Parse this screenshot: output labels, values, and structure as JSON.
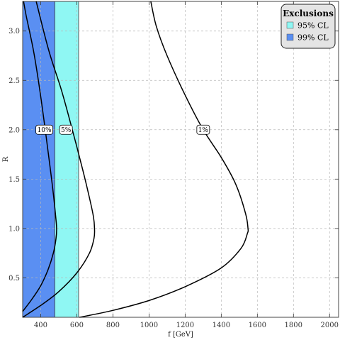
{
  "chart_data": {
    "type": "line",
    "xlabel": "f [GeV]",
    "ylabel": "R",
    "xlim": [
      300,
      2050
    ],
    "ylim": [
      0.1,
      3.3
    ],
    "x_ticks": [
      400,
      600,
      800,
      1000,
      1200,
      1400,
      1600,
      1800,
      2000
    ],
    "y_ticks": [
      0.5,
      1.0,
      1.5,
      2.0,
      2.5,
      3.0
    ],
    "y_tick_labels": [
      "0.5",
      "1.0",
      "1.5",
      "2.0",
      "2.5",
      "3.0"
    ],
    "grid": true,
    "exclusion_regions": [
      {
        "name": "99% CL",
        "x_range": [
          300,
          478
        ],
        "color": "#5a8ff2"
      },
      {
        "name": "95% CL",
        "x_range": [
          478,
          610
        ],
        "color": "#8ff7f3"
      }
    ],
    "contours": [
      {
        "label": "10%",
        "label_at": [
          420,
          2.0
        ],
        "points": [
          [
            300,
            0.16
          ],
          [
            350,
            0.28
          ],
          [
            400,
            0.42
          ],
          [
            440,
            0.58
          ],
          [
            470,
            0.75
          ],
          [
            485,
            0.9
          ],
          [
            488,
            1.0
          ],
          [
            484,
            1.1
          ],
          [
            470,
            1.35
          ],
          [
            450,
            1.65
          ],
          [
            425,
            2.0
          ],
          [
            395,
            2.4
          ],
          [
            360,
            2.8
          ],
          [
            320,
            3.15
          ],
          [
            305,
            3.3
          ]
        ]
      },
      {
        "label": "5%",
        "label_at": [
          540,
          2.0
        ],
        "points": [
          [
            300,
            0.1
          ],
          [
            400,
            0.22
          ],
          [
            500,
            0.36
          ],
          [
            600,
            0.55
          ],
          [
            670,
            0.75
          ],
          [
            695,
            0.9
          ],
          [
            698,
            1.0
          ],
          [
            692,
            1.12
          ],
          [
            665,
            1.35
          ],
          [
            625,
            1.65
          ],
          [
            575,
            2.0
          ],
          [
            515,
            2.4
          ],
          [
            445,
            2.8
          ],
          [
            375,
            3.3
          ]
        ]
      },
      {
        "label": "1%",
        "label_at": [
          1300,
          2.0
        ],
        "points": [
          [
            615,
            0.1
          ],
          [
            800,
            0.17
          ],
          [
            1000,
            0.27
          ],
          [
            1200,
            0.41
          ],
          [
            1400,
            0.6
          ],
          [
            1510,
            0.8
          ],
          [
            1545,
            0.95
          ],
          [
            1548,
            1.0
          ],
          [
            1535,
            1.15
          ],
          [
            1480,
            1.45
          ],
          [
            1400,
            1.72
          ],
          [
            1300,
            2.0
          ],
          [
            1200,
            2.35
          ],
          [
            1100,
            2.75
          ],
          [
            1040,
            3.05
          ],
          [
            1010,
            3.3
          ]
        ]
      }
    ],
    "legend": {
      "title": "Exclusions",
      "placement": "top-right",
      "entries": [
        {
          "label": "95% CL",
          "color": "#8ff7f3"
        },
        {
          "label": "99% CL",
          "color": "#5a8ff2"
        }
      ]
    }
  }
}
